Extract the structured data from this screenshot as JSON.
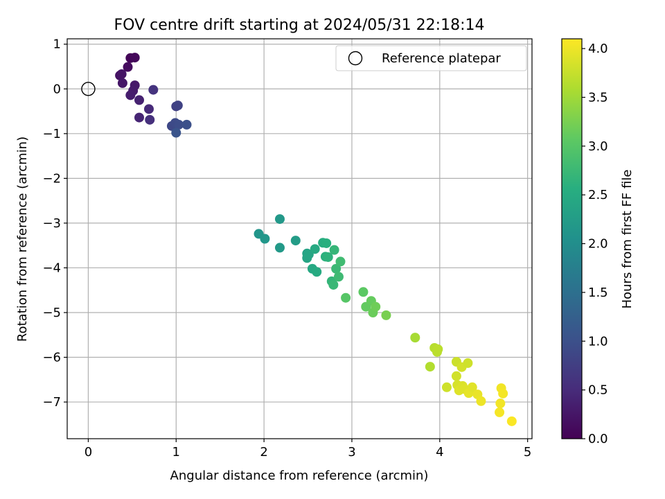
{
  "chart_data": {
    "type": "scatter",
    "title": "FOV centre drift starting at 2024/05/31 22:18:14",
    "xlabel": "Angular distance from reference (arcmin)",
    "ylabel": "Rotation from reference (arcmin)",
    "xlim": [
      -0.24,
      5.05
    ],
    "ylim": [
      -7.82,
      1.12
    ],
    "x_ticks": [
      {
        "value": 0,
        "label": "0"
      },
      {
        "value": 1,
        "label": "1"
      },
      {
        "value": 2,
        "label": "2"
      },
      {
        "value": 3,
        "label": "3"
      },
      {
        "value": 4,
        "label": "4"
      },
      {
        "value": 5,
        "label": "5"
      }
    ],
    "y_ticks": [
      {
        "value": 1,
        "label": "1"
      },
      {
        "value": 0,
        "label": "0"
      },
      {
        "value": -1,
        "label": "−1"
      },
      {
        "value": -2,
        "label": "−2"
      },
      {
        "value": -3,
        "label": "−3"
      },
      {
        "value": -4,
        "label": "−4"
      },
      {
        "value": -5,
        "label": "−5"
      },
      {
        "value": -6,
        "label": "−6"
      },
      {
        "value": -7,
        "label": "−7"
      }
    ],
    "grid": true,
    "legend": {
      "position": "upper right",
      "entries": [
        "Reference platepar"
      ]
    },
    "reference_point": {
      "name": "Reference platepar",
      "x": 0,
      "y": 0
    },
    "colorbar": {
      "label": "Hours from first FF file",
      "range": [
        0.0,
        4.1
      ],
      "colormap": "viridis",
      "ticks": [
        {
          "value": 0.0,
          "label": "0.0"
        },
        {
          "value": 0.5,
          "label": "0.5"
        },
        {
          "value": 1.0,
          "label": "1.0"
        },
        {
          "value": 1.5,
          "label": "1.5"
        },
        {
          "value": 2.0,
          "label": "2.0"
        },
        {
          "value": 2.5,
          "label": "2.5"
        },
        {
          "value": 3.0,
          "label": "3.0"
        },
        {
          "value": 3.5,
          "label": "3.5"
        },
        {
          "value": 4.0,
          "label": "4.0"
        }
      ]
    },
    "points": [
      {
        "x": 0.48,
        "y": 0.69,
        "t": 0.05
      },
      {
        "x": 0.53,
        "y": 0.7,
        "t": 0.08
      },
      {
        "x": 0.45,
        "y": 0.49,
        "t": 0.13
      },
      {
        "x": 0.36,
        "y": 0.3,
        "t": 0.2
      },
      {
        "x": 0.38,
        "y": 0.33,
        "t": 0.22
      },
      {
        "x": 0.39,
        "y": 0.13,
        "t": 0.25
      },
      {
        "x": 0.53,
        "y": 0.08,
        "t": 0.28
      },
      {
        "x": 0.51,
        "y": -0.04,
        "t": 0.3
      },
      {
        "x": 0.48,
        "y": -0.14,
        "t": 0.33
      },
      {
        "x": 0.58,
        "y": -0.25,
        "t": 0.38
      },
      {
        "x": 0.58,
        "y": -0.64,
        "t": 0.42
      },
      {
        "x": 0.69,
        "y": -0.45,
        "t": 0.48
      },
      {
        "x": 0.7,
        "y": -0.69,
        "t": 0.55
      },
      {
        "x": 0.74,
        "y": -0.02,
        "t": 0.6
      },
      {
        "x": 1.0,
        "y": -0.39,
        "t": 0.78
      },
      {
        "x": 1.02,
        "y": -0.37,
        "t": 0.8
      },
      {
        "x": 0.95,
        "y": -0.83,
        "t": 0.88
      },
      {
        "x": 0.99,
        "y": -0.76,
        "t": 0.92
      },
      {
        "x": 1.03,
        "y": -0.8,
        "t": 0.95
      },
      {
        "x": 1.12,
        "y": -0.8,
        "t": 1.0
      },
      {
        "x": 1.0,
        "y": -0.98,
        "t": 1.05
      },
      {
        "x": 1.94,
        "y": -3.24,
        "t": 2.12
      },
      {
        "x": 2.01,
        "y": -3.35,
        "t": 2.15
      },
      {
        "x": 2.18,
        "y": -2.91,
        "t": 2.18
      },
      {
        "x": 2.18,
        "y": -3.55,
        "t": 2.2
      },
      {
        "x": 2.36,
        "y": -3.39,
        "t": 2.25
      },
      {
        "x": 2.49,
        "y": -3.68,
        "t": 2.35
      },
      {
        "x": 2.49,
        "y": -3.78,
        "t": 2.38
      },
      {
        "x": 2.51,
        "y": -3.7,
        "t": 2.4
      },
      {
        "x": 2.55,
        "y": -4.02,
        "t": 2.45
      },
      {
        "x": 2.58,
        "y": -3.58,
        "t": 2.48
      },
      {
        "x": 2.6,
        "y": -4.09,
        "t": 2.5
      },
      {
        "x": 2.67,
        "y": -3.44,
        "t": 2.55
      },
      {
        "x": 2.71,
        "y": -3.45,
        "t": 2.58
      },
      {
        "x": 2.7,
        "y": -3.75,
        "t": 2.6
      },
      {
        "x": 2.73,
        "y": -3.76,
        "t": 2.63
      },
      {
        "x": 2.77,
        "y": -4.3,
        "t": 2.68
      },
      {
        "x": 2.8,
        "y": -3.6,
        "t": 2.7
      },
      {
        "x": 2.79,
        "y": -4.38,
        "t": 2.73
      },
      {
        "x": 2.82,
        "y": -4.02,
        "t": 2.75
      },
      {
        "x": 2.85,
        "y": -4.2,
        "t": 2.78
      },
      {
        "x": 2.87,
        "y": -3.86,
        "t": 2.8
      },
      {
        "x": 2.93,
        "y": -4.67,
        "t": 3.0
      },
      {
        "x": 3.13,
        "y": -4.54,
        "t": 3.05
      },
      {
        "x": 3.16,
        "y": -4.87,
        "t": 3.1
      },
      {
        "x": 3.22,
        "y": -4.74,
        "t": 3.12
      },
      {
        "x": 3.24,
        "y": -5.0,
        "t": 3.15
      },
      {
        "x": 3.27,
        "y": -4.87,
        "t": 3.18
      },
      {
        "x": 3.39,
        "y": -5.06,
        "t": 3.25
      },
      {
        "x": 3.72,
        "y": -5.56,
        "t": 3.55
      },
      {
        "x": 3.89,
        "y": -6.21,
        "t": 3.62
      },
      {
        "x": 3.94,
        "y": -5.79,
        "t": 3.65
      },
      {
        "x": 3.97,
        "y": -5.88,
        "t": 3.67
      },
      {
        "x": 3.98,
        "y": -5.82,
        "t": 3.68
      },
      {
        "x": 4.08,
        "y": -6.67,
        "t": 3.8
      },
      {
        "x": 4.19,
        "y": -6.1,
        "t": 3.78
      },
      {
        "x": 4.19,
        "y": -6.42,
        "t": 3.82
      },
      {
        "x": 4.2,
        "y": -6.62,
        "t": 3.85
      },
      {
        "x": 4.22,
        "y": -6.74,
        "t": 3.9
      },
      {
        "x": 4.25,
        "y": -6.22,
        "t": 3.83
      },
      {
        "x": 4.26,
        "y": -6.64,
        "t": 3.88
      },
      {
        "x": 4.28,
        "y": -6.71,
        "t": 3.9
      },
      {
        "x": 4.32,
        "y": -6.13,
        "t": 3.8
      },
      {
        "x": 4.33,
        "y": -6.8,
        "t": 3.95
      },
      {
        "x": 4.37,
        "y": -6.67,
        "t": 3.92
      },
      {
        "x": 4.43,
        "y": -6.83,
        "t": 3.97
      },
      {
        "x": 4.47,
        "y": -6.98,
        "t": 4.0
      },
      {
        "x": 4.68,
        "y": -7.23,
        "t": 4.05
      },
      {
        "x": 4.69,
        "y": -7.03,
        "t": 4.03
      },
      {
        "x": 4.7,
        "y": -6.69,
        "t": 4.02
      },
      {
        "x": 4.72,
        "y": -6.81,
        "t": 4.04
      },
      {
        "x": 4.82,
        "y": -7.43,
        "t": 4.08
      }
    ]
  }
}
